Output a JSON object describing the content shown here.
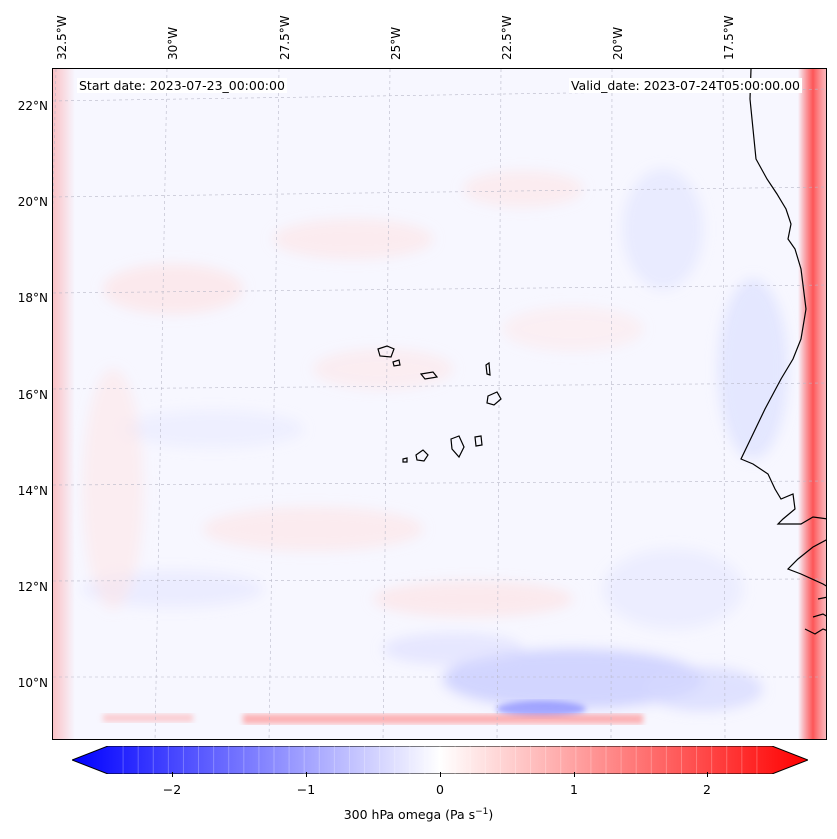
{
  "map": {
    "start_date_text": "Start date: 2023-07-23_00:00:00",
    "valid_date_text": "Valid_date: 2023-07-24T05:00:00.00",
    "lon_labels": [
      "32.5°W",
      "30°W",
      "27.5°W",
      "25°W",
      "22.5°W",
      "20°W",
      "17.5°W"
    ],
    "lat_labels": [
      "22°N",
      "20°N",
      "18°N",
      "16°N",
      "14°N",
      "12°N",
      "10°N"
    ],
    "features": [
      "coastline-west-africa",
      "cape-verde-islands"
    ]
  },
  "colorbar": {
    "label_main": "300 hPa omega (Pa s",
    "label_exp": "−1",
    "label_close": ")",
    "ticks": [
      "−2",
      "−1",
      "0",
      "1",
      "2"
    ],
    "tick_values": [
      -2,
      -1,
      0,
      1,
      2
    ],
    "range": [
      -2.75,
      2.75
    ],
    "colormap": "bwr",
    "extend": "both",
    "colors": {
      "low": "#0000ff",
      "mid": "#ffffff",
      "high": "#ff0000"
    }
  }
}
